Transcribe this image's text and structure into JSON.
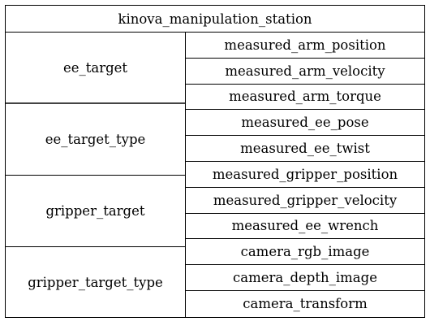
{
  "system": {
    "name": "kinova_manipulation_station"
  },
  "input_ports": [
    "ee_target",
    "ee_target_type",
    "gripper_target",
    "gripper_target_type"
  ],
  "output_ports": [
    "measured_arm_position",
    "measured_arm_velocity",
    "measured_arm_torque",
    "measured_ee_pose",
    "measured_ee_twist",
    "measured_gripper_position",
    "measured_gripper_velocity",
    "measured_ee_wrench",
    "camera_rgb_image",
    "camera_depth_image",
    "camera_transform"
  ]
}
